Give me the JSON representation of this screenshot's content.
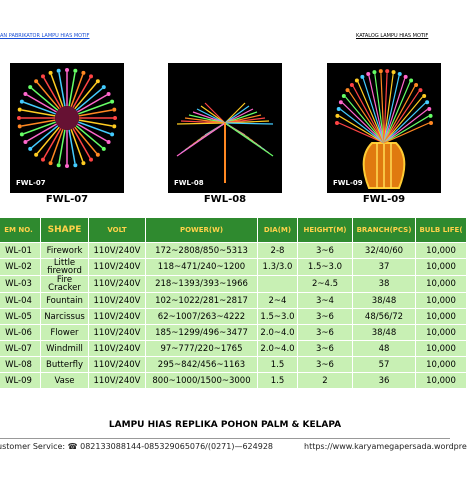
{
  "header": {
    "left": "AN PABRIKATOR LAMPU HIAS MOTIF",
    "right": "KATALOG LAMPU HIAS MOTIF"
  },
  "products": [
    {
      "label": "FWL-07",
      "caption": "FWL-07"
    },
    {
      "label": "FWL-08",
      "caption": "FWL-08"
    },
    {
      "label": "FWL-09",
      "caption": "FWL-09"
    }
  ],
  "table": {
    "columns": [
      "EM NO.",
      "SHAPE",
      "VOLT",
      "POWER(W)",
      "DIA(M)",
      "HEIGHT(M)",
      "BRANCH(PCS)",
      "BULB LIFE("
    ],
    "rows": [
      {
        "no": "WL-01",
        "shape": "Firework",
        "volt": "110V/240V",
        "power": "172~2808/850~5313",
        "dia": "2-8",
        "height": "3~6",
        "branch": "32/40/60",
        "life": "10,000"
      },
      {
        "no": "WL-02",
        "shape": "Little fireword",
        "volt": "110V/240V",
        "power": "118~471/240~1200",
        "dia": "1.3/3.0",
        "height": "1.5~3.0",
        "branch": "37",
        "life": "10,000"
      },
      {
        "no": "WL-03",
        "shape": "Fire Cracker",
        "volt": "110V/240V",
        "power": "218~1393/393~1966",
        "height": "2~4.5",
        "branch": "38",
        "life": "10,000"
      },
      {
        "no": "WL-04",
        "shape": "Fountain",
        "volt": "110V/240V",
        "power": "102~1022/281~2817",
        "dia": "2~4",
        "height": "3~4",
        "branch": "38/48",
        "life": "10,000"
      },
      {
        "no": "WL-05",
        "shape": "Narcissus",
        "volt": "110V/240V",
        "power": "62~1007/263~4222",
        "dia": "1.5~3.0",
        "height": "3~6",
        "branch": "48/56/72",
        "life": "10,000"
      },
      {
        "no": "WL-06",
        "shape": "Flower",
        "volt": "110V/240V",
        "power": "185~1299/496~3477",
        "dia": "2.0~4.0",
        "height": "3~6",
        "branch": "38/48",
        "life": "10,000"
      },
      {
        "no": "WL-07",
        "shape": "Windmill",
        "volt": "110V/240V",
        "power": "97~777/220~1765",
        "dia": "2.0~4.0",
        "height": "3~6",
        "branch": "48",
        "life": "10,000"
      },
      {
        "no": "WL-08",
        "shape": "Butterfly",
        "volt": "110V/240V",
        "power": "295~842/456~1163",
        "dia": "1.5",
        "height": "3~6",
        "branch": "57",
        "life": "10,000"
      },
      {
        "no": "WL-09",
        "shape": "Vase",
        "volt": "110V/240V",
        "power": "800~1000/1500~3000",
        "dia": "1.5",
        "height": "2",
        "branch": "36",
        "life": "10,000"
      }
    ]
  },
  "footer": {
    "title": "LAMPU HIAS REPLIKA POHON PALM & KELAPA",
    "contact": "ustomer Service: ☎ 082133088144-085329065076/(0271)—624928",
    "url": "https://www.karyamegapersada.wordpre"
  }
}
